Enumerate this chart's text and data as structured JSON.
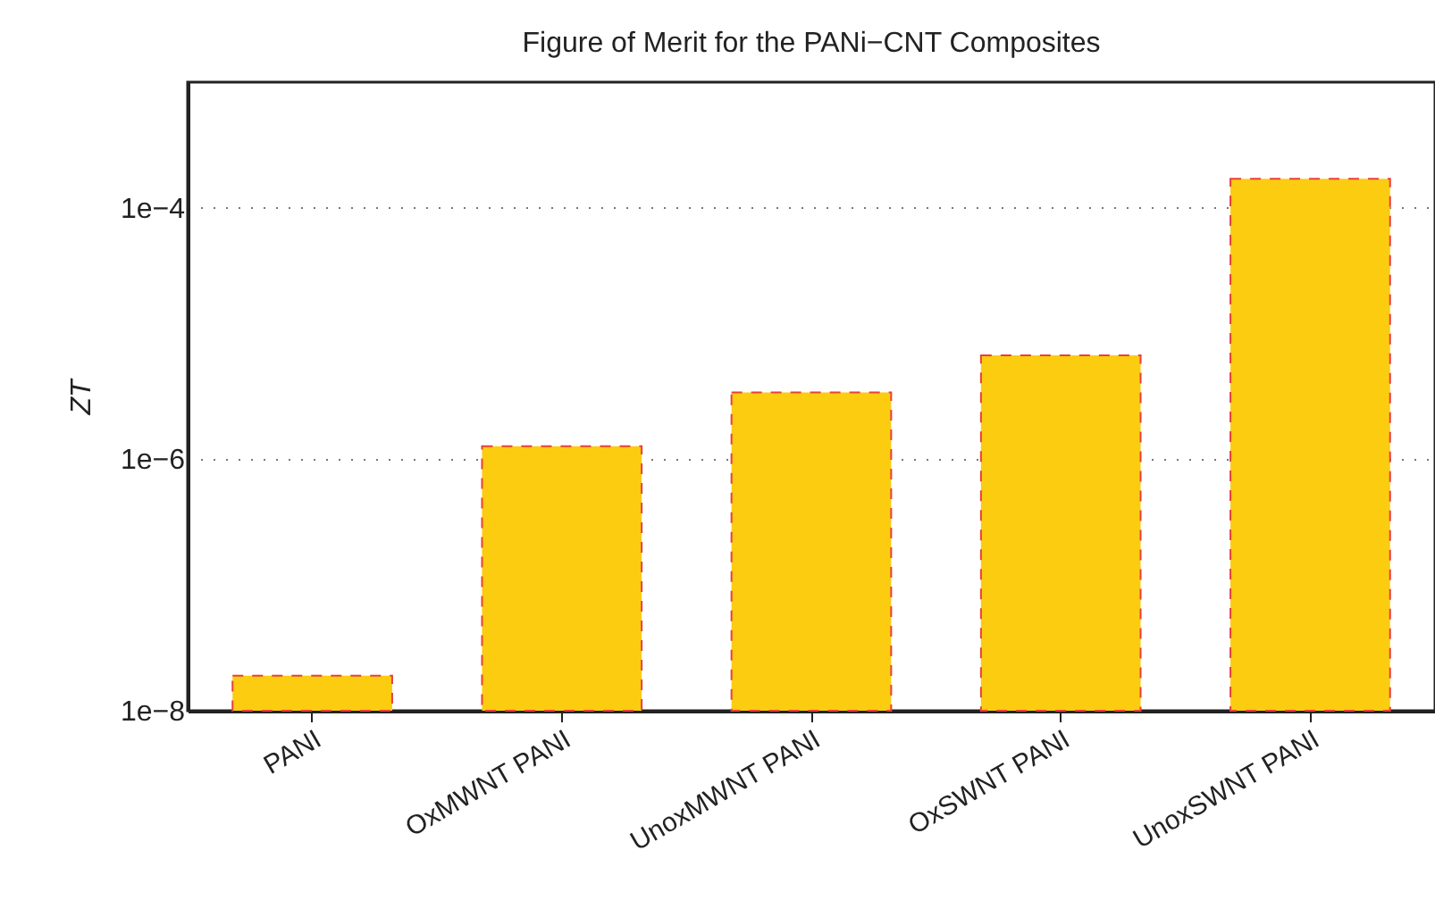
{
  "chart_data": {
    "type": "bar",
    "title": "Figure of Merit for the PANi−CNT Composites",
    "ylabel": "ZT",
    "categories": [
      "PANI",
      "OxMWNT PANI",
      "UnoxMWNT PANI",
      "OxSWNT PANI",
      "UnoxSWNT PANI"
    ],
    "values": [
      1.9e-08,
      1.27e-06,
      3.4e-06,
      6.7e-06,
      0.00017
    ],
    "color": "#fbcc10",
    "log": true,
    "ylim": [
      1e-08,
      0.001
    ],
    "yticks": [
      {
        "value": 1e-08,
        "label": "1e−8"
      },
      {
        "value": 1e-06,
        "label": "1e−6"
      },
      {
        "value": 0.0001,
        "label": "1e−4"
      }
    ],
    "grid": "y"
  }
}
